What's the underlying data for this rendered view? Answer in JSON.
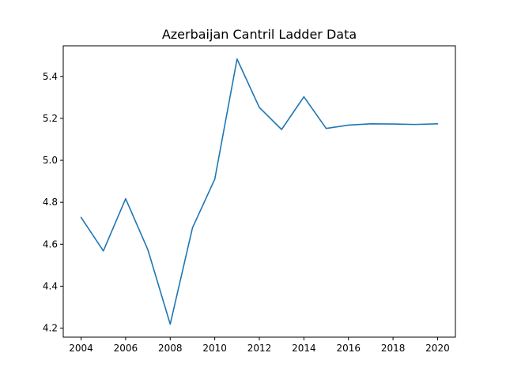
{
  "chart_data": {
    "type": "line",
    "title": "Azerbaijan Cantril Ladder Data",
    "xlabel": "",
    "ylabel": "",
    "x": [
      2004,
      2005,
      2006,
      2007,
      2008,
      2009,
      2010,
      2011,
      2012,
      2013,
      2014,
      2015,
      2016,
      2017,
      2018,
      2019,
      2020
    ],
    "series": [
      {
        "values": [
          4.728,
          4.568,
          4.817,
          4.573,
          4.219,
          4.678,
          4.91,
          5.483,
          5.252,
          5.147,
          5.303,
          5.152,
          5.168,
          5.174,
          5.173,
          5.171,
          5.174
        ],
        "color": "#1f77b4"
      }
    ],
    "xlim": [
      2003.2,
      2020.8
    ],
    "ylim": [
      4.157,
      5.546
    ],
    "xticks": [
      "2004",
      "2006",
      "2008",
      "2010",
      "2012",
      "2014",
      "2016",
      "2018",
      "2020"
    ],
    "yticks": [
      "4.2",
      "4.4",
      "4.6",
      "4.8",
      "5.0",
      "5.2",
      "5.4"
    ],
    "grid": false,
    "legend": "none"
  }
}
